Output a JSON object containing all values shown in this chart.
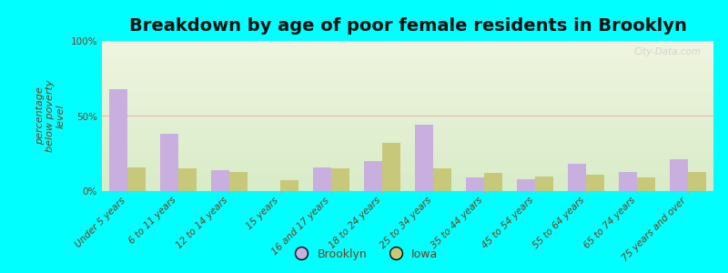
{
  "title": "Breakdown by age of poor female residents in Brooklyn",
  "ylabel": "percentage\nbelow poverty\nlevel",
  "categories": [
    "Under 5 years",
    "6 to 11 years",
    "12 to 14 years",
    "15 years",
    "16 and 17 years",
    "18 to 24 years",
    "25 to 34 years",
    "35 to 44 years",
    "45 to 54 years",
    "55 to 64 years",
    "65 to 74 years",
    "75 years and over"
  ],
  "brooklyn": [
    68,
    38,
    14,
    0,
    16,
    20,
    44,
    9,
    8,
    18,
    13,
    21
  ],
  "iowa": [
    16,
    15,
    13,
    7,
    15,
    32,
    15,
    12,
    10,
    11,
    9,
    13
  ],
  "brooklyn_color": "#c9aee0",
  "iowa_color": "#c8c87a",
  "ylim": [
    0,
    100
  ],
  "yticks": [
    0,
    50,
    100
  ],
  "ytick_labels": [
    "0%",
    "50%",
    "100%"
  ],
  "background_color": "#00ffff",
  "title_fontsize": 14,
  "axis_label_fontsize": 8,
  "tick_fontsize": 7.5,
  "legend_fontsize": 9,
  "bar_width": 0.35,
  "watermark": "City-Data.com",
  "tick_color": "#7a3a1a",
  "label_color": "#7a3a1a"
}
